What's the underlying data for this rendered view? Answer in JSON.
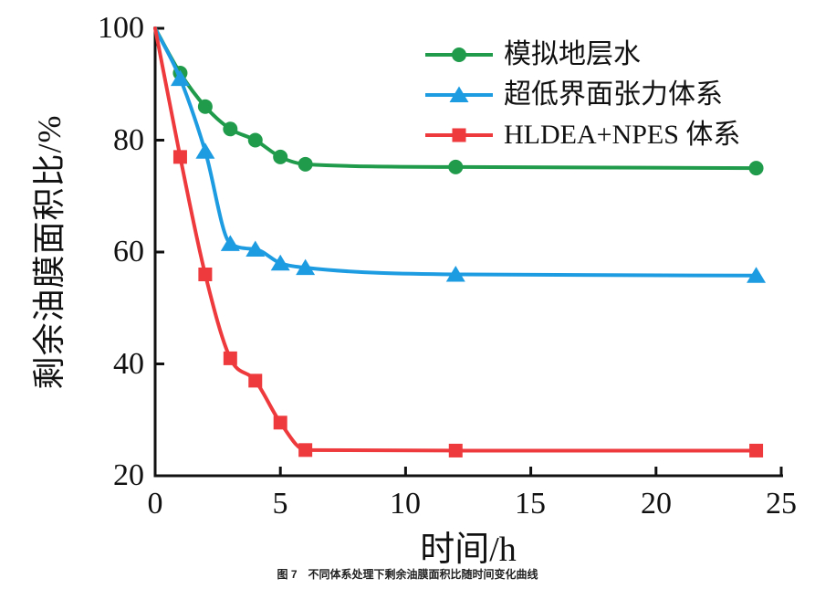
{
  "figure": {
    "caption": "图 7　不同体系处理下剩余油膜面积比随时间变化曲线"
  },
  "chart_data": {
    "type": "line",
    "title": "",
    "xlabel": "时间/h",
    "ylabel": "剩余油膜面积比/%",
    "xlim": [
      0,
      25
    ],
    "ylim": [
      20,
      100
    ],
    "xticks": [
      0,
      5,
      10,
      15,
      20,
      25
    ],
    "yticks": [
      100,
      80,
      60,
      40,
      20
    ],
    "grid": false,
    "legend_position": "upper-right-inside",
    "axis_color": "#111111",
    "x": [
      0,
      1,
      2,
      3,
      4,
      5,
      6,
      12,
      24
    ],
    "series": [
      {
        "name": "模拟地层水",
        "marker": "circle",
        "color": "#1f9b4b",
        "values": [
          100,
          92,
          86,
          82,
          80,
          77,
          75.7,
          75.2,
          75
        ]
      },
      {
        "name": "超低界面张力体系",
        "marker": "triangle",
        "color": "#1e9ce2",
        "values": [
          100,
          91,
          78,
          61.5,
          60.5,
          58,
          57.2,
          56,
          55.8
        ]
      },
      {
        "name": "HLDEA+NPES 体系",
        "marker": "square",
        "color": "#ee3a3c",
        "values": [
          100,
          77,
          56,
          41,
          37,
          29.5,
          24.6,
          24.5,
          24.5
        ]
      }
    ]
  }
}
